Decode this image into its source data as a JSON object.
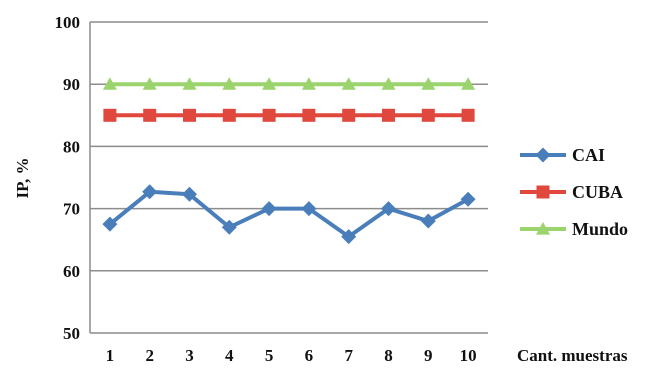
{
  "chart_data": {
    "type": "line",
    "x": [
      1,
      2,
      3,
      4,
      5,
      6,
      7,
      8,
      9,
      10
    ],
    "xlabel": "Cant. muestras",
    "ylabel": "IP, %",
    "ylim": [
      50,
      100
    ],
    "yticks": [
      50,
      60,
      70,
      80,
      90,
      100
    ],
    "grid": "horizontal",
    "legend_position": "right",
    "series": [
      {
        "name": "CAI",
        "color": "#4a7ebb",
        "marker": "diamond",
        "values": [
          67.5,
          72.7,
          72.3,
          67.0,
          70.0,
          70.0,
          65.5,
          70.0,
          68.0,
          71.5
        ]
      },
      {
        "name": "CUBA",
        "color": "#e0473d",
        "marker": "square",
        "values": [
          85,
          85,
          85,
          85,
          85,
          85,
          85,
          85,
          85,
          85
        ]
      },
      {
        "name": "Mundo",
        "color": "#9bd36d",
        "marker": "triangle",
        "values": [
          90,
          90,
          90,
          90,
          90,
          90,
          90,
          90,
          90,
          90
        ]
      }
    ]
  }
}
